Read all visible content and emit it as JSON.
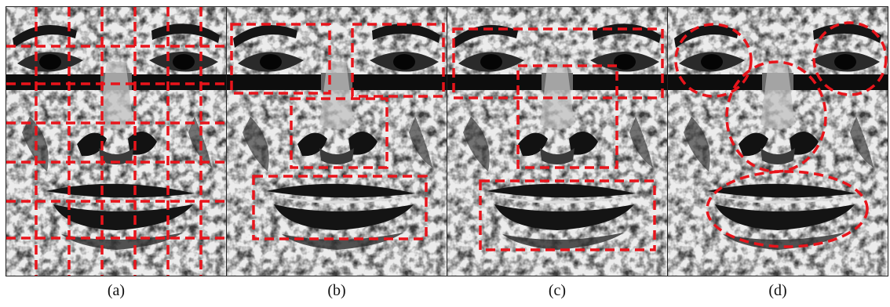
{
  "panels": [
    {
      "caption": "(a)",
      "overlay": "grid"
    },
    {
      "caption": "(b)",
      "overlay": "region-boxes"
    },
    {
      "caption": "(c)",
      "overlay": "wide-boxes"
    },
    {
      "caption": "(d)",
      "overlay": "ellipses"
    }
  ],
  "colors": {
    "overlay": "#e8141b",
    "ink": "#141414",
    "paper": "#e9e9e9"
  }
}
